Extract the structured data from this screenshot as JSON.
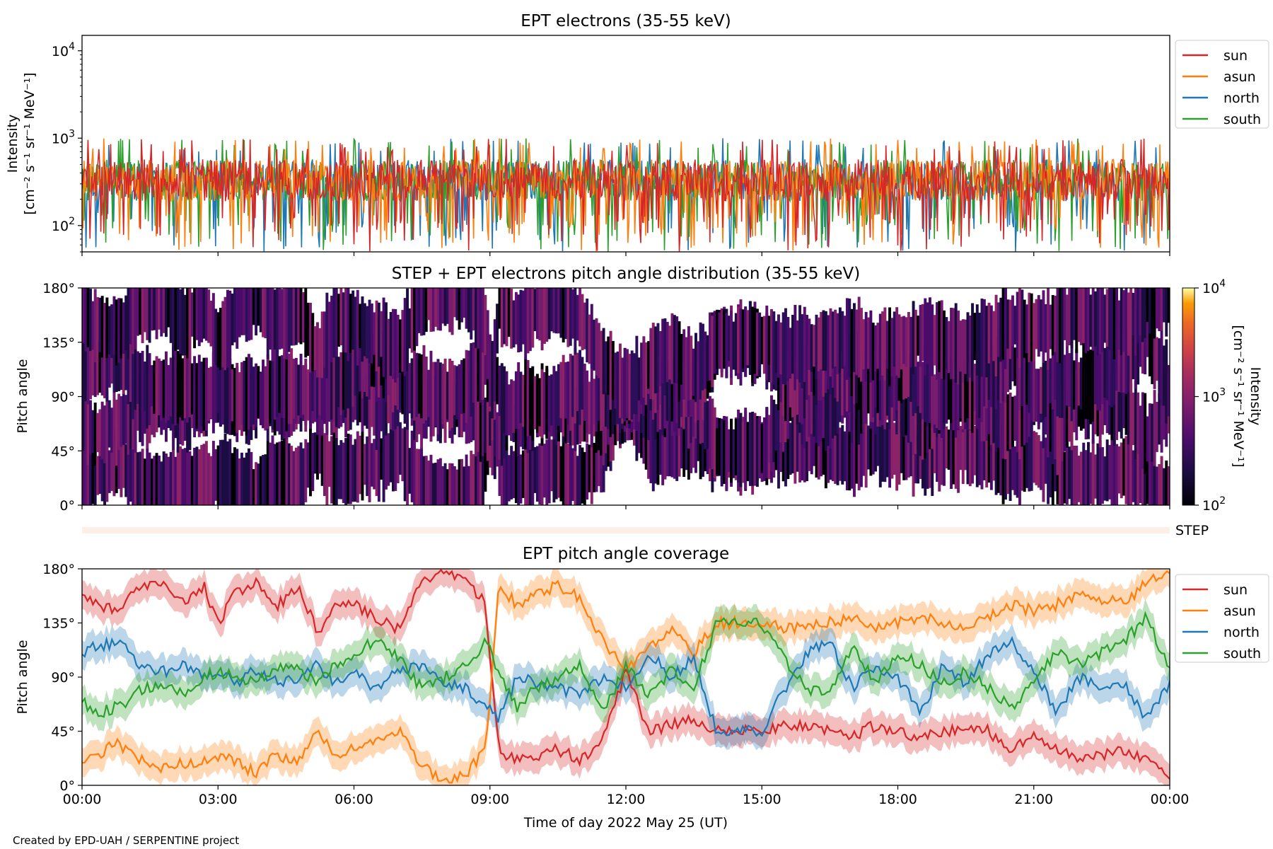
{
  "credit": "Created by EPD-UAH / SERPENTINE project",
  "xlabel": "Time of day 2022 May 25 (UT)",
  "x_ticks": [
    "00:00",
    "03:00",
    "06:00",
    "09:00",
    "12:00",
    "15:00",
    "18:00",
    "21:00",
    "00:00"
  ],
  "colors": {
    "sun": "#d62728",
    "asun": "#ff7f0e",
    "north": "#1f77b4",
    "south": "#2ca02c"
  },
  "step_label": "STEP",
  "chart_data": [
    {
      "id": "intensity",
      "type": "line",
      "title": "EPT electrons (35-55 keV)",
      "ylabel": [
        "Intensity",
        "[cm⁻² s⁻¹ sr⁻¹ MeV⁻¹]"
      ],
      "yscale": "log",
      "ylim": [
        50,
        15000
      ],
      "y_ticks": [
        {
          "value": 100,
          "base": "10",
          "exp": "2"
        },
        {
          "value": 1000,
          "base": "10",
          "exp": "3"
        },
        {
          "value": 10000,
          "base": "10",
          "exp": "4"
        }
      ],
      "xlim_hours": [
        0,
        24
      ],
      "legend": [
        "sun",
        "asun",
        "north",
        "south"
      ],
      "typical_level": 330,
      "typical_range": [
        50,
        1000
      ]
    },
    {
      "id": "pad",
      "type": "heatmap",
      "title": "STEP + EPT electrons pitch angle distribution (35-55 keV)",
      "ylabel": "Pitch angle",
      "ylim": [
        0,
        180
      ],
      "y_ticks": [
        "0°",
        "45°",
        "90°",
        "135°",
        "180°"
      ],
      "colorbar": {
        "label": [
          "Intensity",
          "[cm⁻² s⁻¹ sr⁻¹ MeV⁻¹]"
        ],
        "scale": "log",
        "range": [
          100,
          10000
        ],
        "ticks": [
          {
            "base": "10",
            "exp": "2"
          },
          {
            "base": "10",
            "exp": "3"
          },
          {
            "base": "10",
            "exp": "4"
          }
        ]
      }
    },
    {
      "id": "coverage",
      "type": "line",
      "title": "EPT pitch angle coverage",
      "ylabel": "Pitch angle",
      "ylim": [
        0,
        180
      ],
      "y_ticks": [
        "0°",
        "45°",
        "90°",
        "135°",
        "180°"
      ],
      "legend": [
        "sun",
        "asun",
        "north",
        "south"
      ],
      "series": [
        {
          "name": "sun",
          "x": [
            0,
            0.3,
            0.8,
            1.3,
            1.8,
            2.3,
            2.7,
            3.0,
            3.4,
            3.8,
            4.3,
            4.8,
            5.2,
            5.6,
            6.0,
            6.5,
            7.0,
            7.5,
            8.0,
            8.5,
            8.9,
            9.2,
            9.6,
            10.0,
            10.5,
            11.0,
            11.5,
            12.0,
            12.5,
            13.0,
            13.5,
            14.0,
            14.5,
            15.0,
            15.5,
            16.0,
            16.5,
            17.0,
            17.5,
            18.0,
            18.5,
            19.0,
            19.5,
            20.0,
            20.5,
            21.0,
            21.5,
            22.0,
            22.5,
            23.0,
            23.5,
            24.0
          ],
          "y": [
            160,
            150,
            145,
            165,
            168,
            150,
            165,
            135,
            160,
            170,
            150,
            165,
            125,
            155,
            150,
            140,
            130,
            170,
            175,
            170,
            150,
            30,
            20,
            25,
            30,
            20,
            40,
            95,
            45,
            50,
            55,
            45,
            45,
            45,
            50,
            48,
            45,
            40,
            50,
            45,
            40,
            45,
            48,
            45,
            30,
            40,
            30,
            20,
            25,
            30,
            20,
            5
          ]
        },
        {
          "name": "asun",
          "x": [
            0,
            0.3,
            0.8,
            1.3,
            1.8,
            2.3,
            2.7,
            3.0,
            3.4,
            3.8,
            4.3,
            4.8,
            5.2,
            5.6,
            6.0,
            6.5,
            7.0,
            7.5,
            8.0,
            8.5,
            8.9,
            9.2,
            9.6,
            10.0,
            10.5,
            11.0,
            11.5,
            12.0,
            12.5,
            13.0,
            13.5,
            14.0,
            14.5,
            15.0,
            15.5,
            16.0,
            16.5,
            17.0,
            17.5,
            18.0,
            18.5,
            19.0,
            19.5,
            20.0,
            20.5,
            21.0,
            21.5,
            22.0,
            22.5,
            23.0,
            23.5,
            24.0
          ],
          "y": [
            20,
            25,
            35,
            20,
            15,
            18,
            20,
            25,
            20,
            10,
            25,
            20,
            45,
            25,
            30,
            35,
            45,
            15,
            5,
            10,
            30,
            165,
            150,
            160,
            165,
            155,
            120,
            95,
            115,
            130,
            110,
            135,
            135,
            135,
            130,
            132,
            135,
            140,
            130,
            135,
            140,
            135,
            132,
            140,
            150,
            145,
            150,
            160,
            155,
            150,
            170,
            175
          ]
        },
        {
          "name": "north",
          "x": [
            0,
            0.3,
            0.8,
            1.3,
            1.8,
            2.3,
            2.7,
            3.0,
            3.4,
            3.8,
            4.3,
            4.8,
            5.2,
            5.6,
            6.0,
            6.5,
            7.0,
            7.5,
            8.0,
            8.5,
            8.9,
            9.2,
            9.6,
            10.0,
            10.5,
            11.0,
            11.5,
            12.0,
            12.5,
            13.0,
            13.5,
            14.0,
            14.5,
            15.0,
            15.5,
            16.0,
            16.5,
            17.0,
            17.5,
            18.0,
            18.5,
            19.0,
            19.5,
            20.0,
            20.5,
            21.0,
            21.5,
            22.0,
            22.5,
            23.0,
            23.5,
            24.0
          ],
          "y": [
            110,
            115,
            120,
            100,
            95,
            100,
            90,
            95,
            85,
            95,
            85,
            90,
            100,
            85,
            95,
            80,
            95,
            100,
            85,
            80,
            65,
            55,
            90,
            85,
            80,
            75,
            90,
            80,
            110,
            90,
            105,
            45,
            45,
            45,
            80,
            110,
            120,
            80,
            100,
            90,
            60,
            100,
            85,
            110,
            120,
            95,
            60,
            90,
            80,
            85,
            55,
            85
          ]
        },
        {
          "name": "south",
          "x": [
            0,
            0.3,
            0.8,
            1.3,
            1.8,
            2.3,
            2.7,
            3.0,
            3.4,
            3.8,
            4.3,
            4.8,
            5.2,
            5.6,
            6.0,
            6.5,
            7.0,
            7.5,
            8.0,
            8.5,
            8.9,
            9.2,
            9.6,
            10.0,
            10.5,
            11.0,
            11.5,
            12.0,
            12.5,
            13.0,
            13.5,
            14.0,
            14.5,
            15.0,
            15.5,
            16.0,
            16.5,
            17.0,
            17.5,
            18.0,
            18.5,
            19.0,
            19.5,
            20.0,
            20.5,
            21.0,
            21.5,
            22.0,
            22.5,
            23.0,
            23.5,
            24.0
          ],
          "y": [
            70,
            60,
            65,
            80,
            85,
            75,
            90,
            95,
            90,
            85,
            100,
            95,
            85,
            100,
            110,
            120,
            105,
            80,
            90,
            100,
            120,
            95,
            65,
            80,
            90,
            100,
            60,
            100,
            75,
            95,
            80,
            135,
            135,
            135,
            105,
            80,
            75,
            115,
            85,
            110,
            100,
            85,
            95,
            80,
            65,
            85,
            110,
            100,
            110,
            120,
            140,
            95
          ]
        }
      ]
    }
  ]
}
